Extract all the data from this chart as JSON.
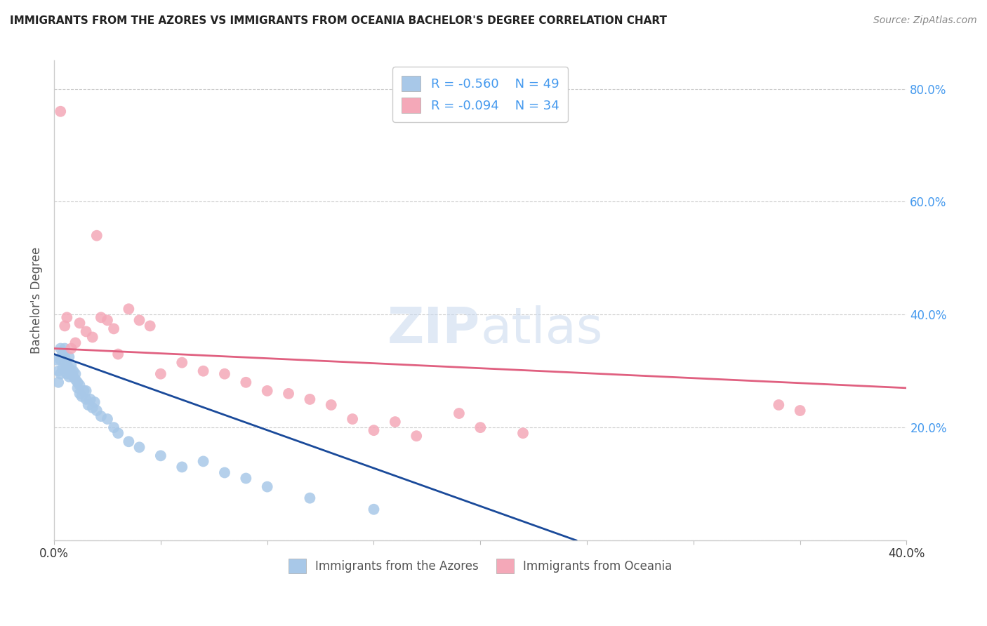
{
  "title": "IMMIGRANTS FROM THE AZORES VS IMMIGRANTS FROM OCEANIA BACHELOR'S DEGREE CORRELATION CHART",
  "source": "Source: ZipAtlas.com",
  "ylabel": "Bachelor's Degree",
  "xlim": [
    0.0,
    0.4
  ],
  "ylim": [
    0.0,
    0.85
  ],
  "yticks": [
    0.0,
    0.2,
    0.4,
    0.6,
    0.8
  ],
  "ytick_labels": [
    "",
    "20.0%",
    "40.0%",
    "60.0%",
    "80.0%"
  ],
  "xticks": [
    0.0,
    0.05,
    0.1,
    0.15,
    0.2,
    0.25,
    0.3,
    0.35,
    0.4
  ],
  "xtick_labels": [
    "0.0%",
    "",
    "",
    "",
    "",
    "",
    "",
    "",
    "40.0%"
  ],
  "legend_r1": "-0.560",
  "legend_n1": "49",
  "legend_r2": "-0.094",
  "legend_n2": "34",
  "color_azores": "#a8c8e8",
  "color_oceania": "#f4a8b8",
  "line_color_azores": "#1a4a9a",
  "line_color_oceania": "#e06080",
  "azores_x": [
    0.001,
    0.002,
    0.002,
    0.003,
    0.003,
    0.003,
    0.004,
    0.004,
    0.005,
    0.005,
    0.005,
    0.006,
    0.006,
    0.007,
    0.007,
    0.007,
    0.008,
    0.008,
    0.009,
    0.009,
    0.01,
    0.01,
    0.011,
    0.011,
    0.012,
    0.012,
    0.013,
    0.014,
    0.015,
    0.015,
    0.016,
    0.017,
    0.018,
    0.019,
    0.02,
    0.022,
    0.025,
    0.028,
    0.03,
    0.035,
    0.04,
    0.05,
    0.06,
    0.07,
    0.08,
    0.09,
    0.1,
    0.12,
    0.15
  ],
  "azores_y": [
    0.32,
    0.28,
    0.3,
    0.32,
    0.34,
    0.295,
    0.305,
    0.33,
    0.315,
    0.325,
    0.34,
    0.295,
    0.31,
    0.325,
    0.305,
    0.29,
    0.295,
    0.31,
    0.29,
    0.3,
    0.285,
    0.295,
    0.28,
    0.27,
    0.275,
    0.26,
    0.255,
    0.265,
    0.25,
    0.265,
    0.24,
    0.25,
    0.235,
    0.245,
    0.23,
    0.22,
    0.215,
    0.2,
    0.19,
    0.175,
    0.165,
    0.15,
    0.13,
    0.14,
    0.12,
    0.11,
    0.095,
    0.075,
    0.055
  ],
  "oceania_x": [
    0.003,
    0.005,
    0.006,
    0.008,
    0.01,
    0.012,
    0.015,
    0.018,
    0.02,
    0.022,
    0.025,
    0.028,
    0.03,
    0.035,
    0.04,
    0.045,
    0.05,
    0.06,
    0.07,
    0.08,
    0.09,
    0.1,
    0.11,
    0.12,
    0.13,
    0.14,
    0.15,
    0.16,
    0.17,
    0.19,
    0.2,
    0.22,
    0.34,
    0.35
  ],
  "oceania_y": [
    0.76,
    0.38,
    0.395,
    0.34,
    0.35,
    0.385,
    0.37,
    0.36,
    0.54,
    0.395,
    0.39,
    0.375,
    0.33,
    0.41,
    0.39,
    0.38,
    0.295,
    0.315,
    0.3,
    0.295,
    0.28,
    0.265,
    0.26,
    0.25,
    0.24,
    0.215,
    0.195,
    0.21,
    0.185,
    0.225,
    0.2,
    0.19,
    0.24,
    0.23
  ],
  "azores_trend_x": [
    0.0,
    0.245
  ],
  "azores_trend_y": [
    0.33,
    0.0
  ],
  "oceania_trend_x": [
    0.0,
    0.4
  ],
  "oceania_trend_y": [
    0.34,
    0.27
  ]
}
